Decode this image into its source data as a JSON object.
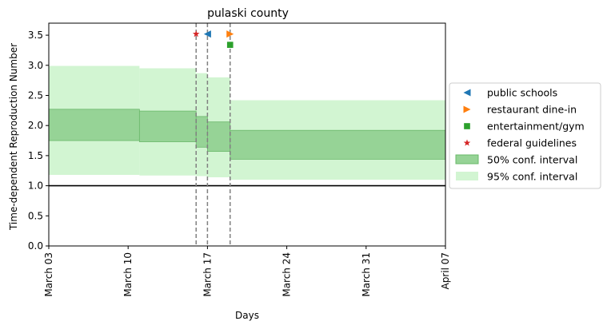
{
  "chart_data": {
    "type": "area",
    "title": "pulaski county",
    "xlabel": "Days",
    "ylabel": "Time-dependent Reproduction Number",
    "x_start": "2020-03-03",
    "x_end": "2020-04-07",
    "xticks": [
      {
        "date": "2020-03-03",
        "label": "March 03"
      },
      {
        "date": "2020-03-10",
        "label": "March 10"
      },
      {
        "date": "2020-03-17",
        "label": "March 17"
      },
      {
        "date": "2020-03-24",
        "label": "March 24"
      },
      {
        "date": "2020-03-31",
        "label": "March 31"
      },
      {
        "date": "2020-04-07",
        "label": "April 07"
      }
    ],
    "ylim": [
      0,
      3.7
    ],
    "yticks": [
      "0.0",
      "0.5",
      "1.0",
      "1.5",
      "2.0",
      "2.5",
      "3.0",
      "3.5"
    ],
    "reference_line": 1.0,
    "grid": false,
    "legend_position": "right",
    "intervals": [
      {
        "start": "2020-03-03",
        "end": "2020-03-11",
        "ci50": [
          1.75,
          2.27
        ],
        "ci95": [
          1.18,
          2.99
        ]
      },
      {
        "start": "2020-03-11",
        "end": "2020-03-16",
        "ci50": [
          1.73,
          2.24
        ],
        "ci95": [
          1.17,
          2.95
        ]
      },
      {
        "start": "2020-03-16",
        "end": "2020-03-17",
        "ci50": [
          1.64,
          2.15
        ],
        "ci95": [
          1.16,
          2.87
        ]
      },
      {
        "start": "2020-03-17",
        "end": "2020-03-19",
        "ci50": [
          1.57,
          2.06
        ],
        "ci95": [
          1.14,
          2.8
        ]
      },
      {
        "start": "2020-03-19",
        "end": "2020-04-07",
        "ci50": [
          1.44,
          1.92
        ],
        "ci95": [
          1.1,
          2.42
        ]
      }
    ],
    "interventions": [
      {
        "name": "public schools",
        "date": "2020-03-17",
        "y": 3.52,
        "marker": "triangle-left",
        "color": "#1f77b4"
      },
      {
        "name": "restaurant dine-in",
        "date": "2020-03-19",
        "y": 3.52,
        "marker": "triangle-right",
        "color": "#ff7f0e"
      },
      {
        "name": "entertainment/gym",
        "date": "2020-03-19",
        "y": 3.34,
        "marker": "square",
        "color": "#2ca02c"
      },
      {
        "name": "federal guidelines",
        "date": "2020-03-16",
        "y": 3.52,
        "marker": "star",
        "color": "#d62728"
      }
    ],
    "legend": [
      {
        "label": "public schools",
        "kind": "triangle-left",
        "color": "#1f77b4"
      },
      {
        "label": "restaurant dine-in",
        "kind": "triangle-right",
        "color": "#ff7f0e"
      },
      {
        "label": "entertainment/gym",
        "kind": "square",
        "color": "#2ca02c"
      },
      {
        "label": "federal guidelines",
        "kind": "star",
        "color": "#d62728"
      },
      {
        "label": "50% conf. interval",
        "kind": "patch50",
        "color": "#96d396"
      },
      {
        "label": "95% conf. interval",
        "kind": "patch95",
        "color": "#d2f5d2"
      }
    ],
    "colors": {
      "ci50_fill": "#96d396",
      "ci50_edge": "#6ab86a",
      "ci95_fill": "#d2f5d2",
      "vline": "#808080",
      "reference_line": "#000000"
    }
  }
}
